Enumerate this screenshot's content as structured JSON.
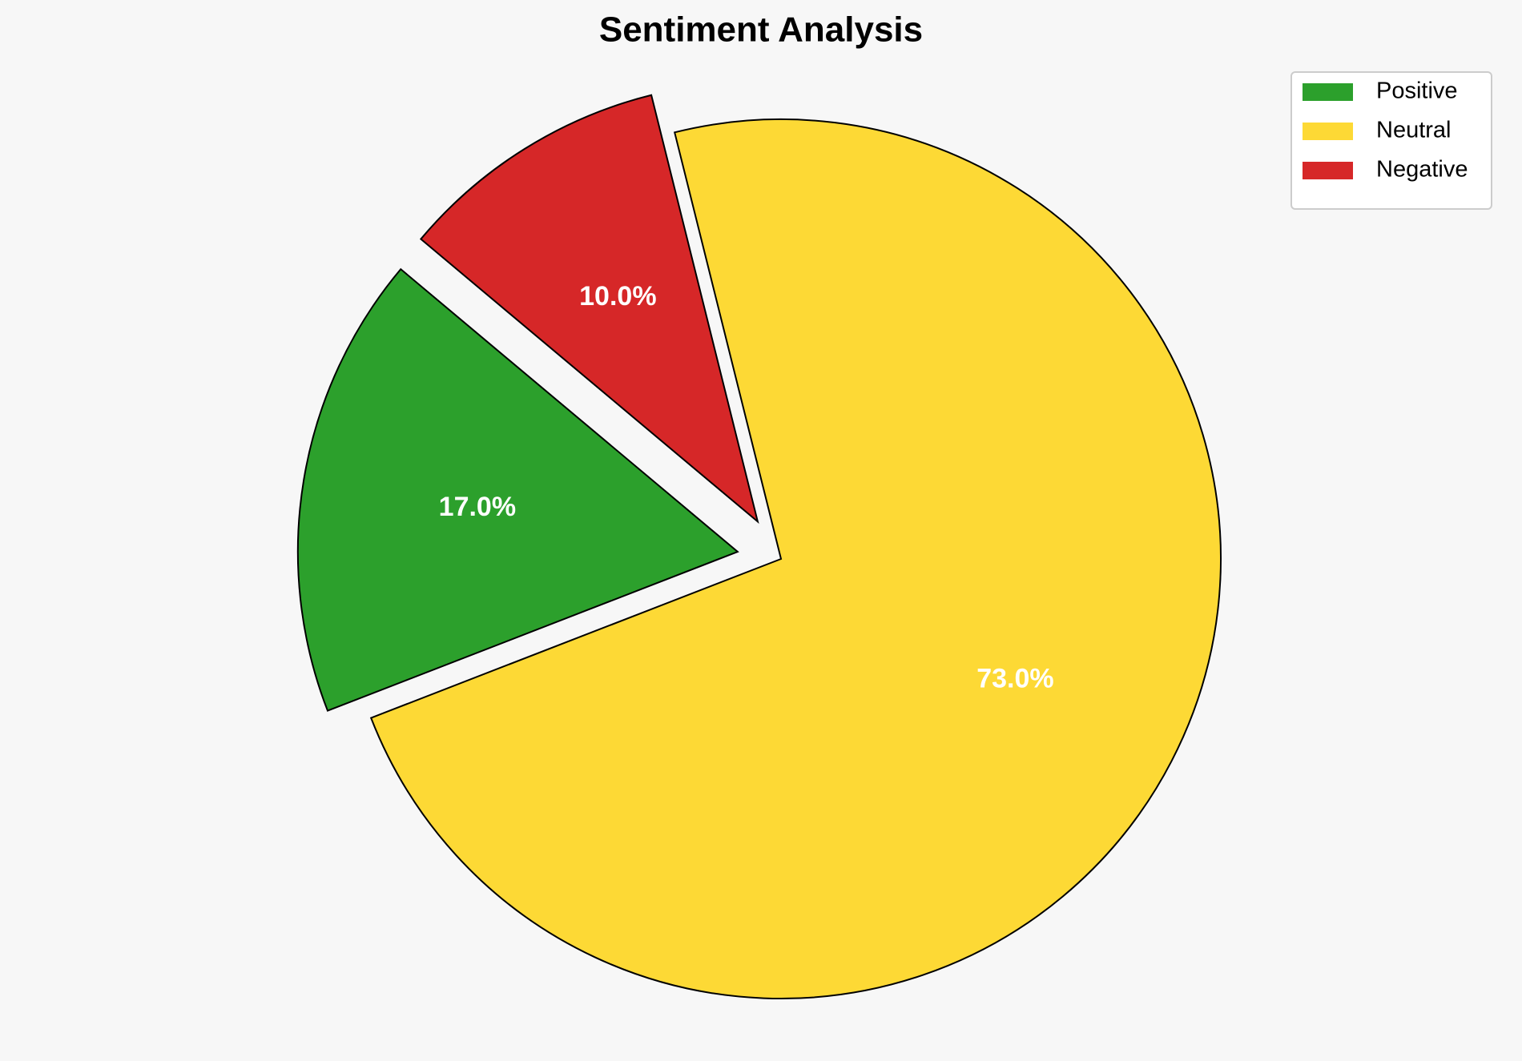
{
  "chart_data": {
    "type": "pie",
    "title": "Sentiment Analysis",
    "categories": [
      "Positive",
      "Neutral",
      "Negative"
    ],
    "values": [
      17,
      73,
      10
    ],
    "value_labels": [
      "17.0%",
      "73.0%",
      "10.0%"
    ],
    "colors": [
      "#2ca02c",
      "#fdd935",
      "#d62728"
    ],
    "explode": [
      0.1,
      0,
      0.1
    ],
    "startangle": 140,
    "legend": "upper right"
  }
}
